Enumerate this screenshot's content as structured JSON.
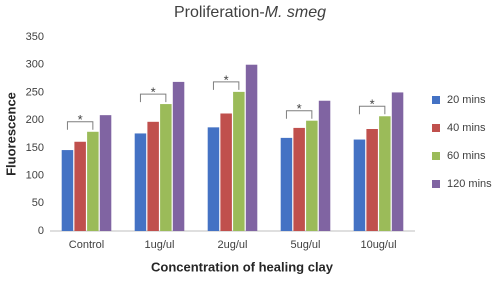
{
  "chart_data": {
    "type": "bar",
    "title": [
      "Proliferation-",
      "M. smeg"
    ],
    "x_label": "Concentration of healing clay",
    "y_label": "Fluorescence",
    "categories": [
      "Control",
      "1ug/ul",
      "2ug/ul",
      "5ug/ul",
      "10ug/ul"
    ],
    "series": [
      {
        "name": "20 mins",
        "color": "#4472c4",
        "values": [
          146,
          176,
          187,
          168,
          165
        ]
      },
      {
        "name": "40 mins",
        "color": "#c0504d",
        "values": [
          161,
          197,
          212,
          186,
          184
        ]
      },
      {
        "name": "60 mins",
        "color": "#9bbb59",
        "values": [
          179,
          229,
          251,
          199,
          207
        ]
      },
      {
        "name": "120 mins",
        "color": "#8064a2",
        "values": [
          209,
          269,
          300,
          235,
          250
        ]
      }
    ],
    "annotations": [
      "*",
      "*",
      "*",
      "*",
      "*"
    ],
    "ylim": [
      0,
      350
    ],
    "yticks": [
      0,
      50,
      100,
      150,
      200,
      250,
      300,
      350
    ],
    "grid": false,
    "legend": "right"
  }
}
